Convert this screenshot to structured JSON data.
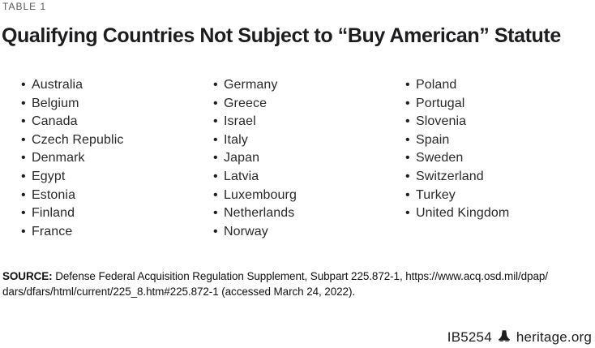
{
  "table_label": "TABLE 1",
  "title": "Qualifying Countries Not Subject to “Buy American” Statute",
  "bullet": "•",
  "table": {
    "columns": [
      [
        "Australia",
        "Belgium",
        "Canada",
        "Czech Republic",
        "Denmark",
        "Egypt",
        "Estonia",
        "Finland",
        "France"
      ],
      [
        "Germany",
        "Greece",
        "Israel",
        "Italy",
        "Japan",
        "Latvia",
        "Luxembourg",
        "Netherlands",
        "Norway"
      ],
      [
        "Poland",
        "Portugal",
        "Slovenia",
        "Spain",
        "Sweden",
        "Switzerland",
        "Turkey",
        "United Kingdom"
      ]
    ]
  },
  "source": {
    "prefix": "SOURCE:",
    "line1": " Defense Federal Acquisition Regulation Supplement, Subpart 225.872-1, https://www.acq.osd.mil/dpap/",
    "line2": "dars/dfars/html/current/225_8.htm#225.872-1 (accessed March 24, 2022)."
  },
  "footer": {
    "report_id": "IB5254",
    "logo_icon": "liberty-bell-icon",
    "site": "heritage.org"
  },
  "colors": {
    "label_gray": "#58585b",
    "title_dark": "#1d1d1f",
    "body_text": "#29292b",
    "background": "#ffffff"
  }
}
